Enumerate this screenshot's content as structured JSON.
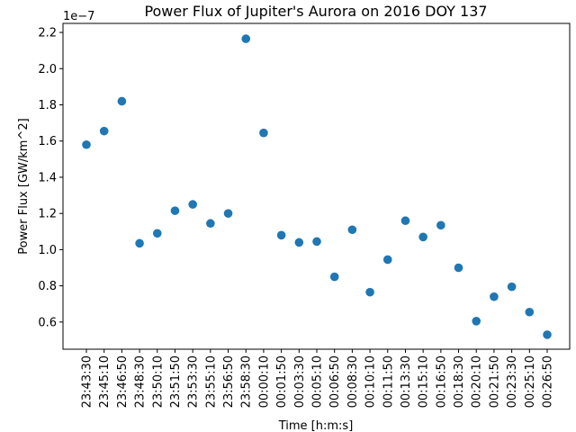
{
  "chart_data": {
    "type": "scatter",
    "title": "Power Flux of Jupiter's Aurora on 2016 DOY 137",
    "xlabel": "Time [h:m:s]",
    "ylabel": "Power Flux [GW/km^2]",
    "y_offset_label": "1e−7",
    "y_scale_exponent": -7,
    "ylim": [
      0.45,
      2.25
    ],
    "yticks": [
      "0.6",
      "0.8",
      "1.0",
      "1.2",
      "1.4",
      "1.6",
      "1.8",
      "2.0",
      "2.2"
    ],
    "grid": false,
    "marker_color": "#1f77b4",
    "categories": [
      "23:43:30",
      "23:45:10",
      "23:46:50",
      "23:48:30",
      "23:50:10",
      "23:51:50",
      "23:53:30",
      "23:55:10",
      "23:56:50",
      "23:58:30",
      "00:00:10",
      "00:01:50",
      "00:03:30",
      "00:05:10",
      "00:06:50",
      "00:08:30",
      "00:10:10",
      "00:11:50",
      "00:13:30",
      "00:15:10",
      "00:16:50",
      "00:18:30",
      "00:20:10",
      "00:21:50",
      "00:23:30",
      "00:25:10",
      "00:26:50"
    ],
    "values": [
      1.58,
      1.655,
      1.82,
      1.035,
      1.09,
      1.215,
      1.25,
      1.145,
      1.2,
      2.165,
      1.645,
      1.08,
      1.04,
      1.045,
      0.85,
      1.11,
      0.765,
      0.945,
      1.16,
      1.07,
      1.135,
      0.9,
      0.605,
      0.74,
      0.795,
      0.655,
      0.53
    ]
  }
}
